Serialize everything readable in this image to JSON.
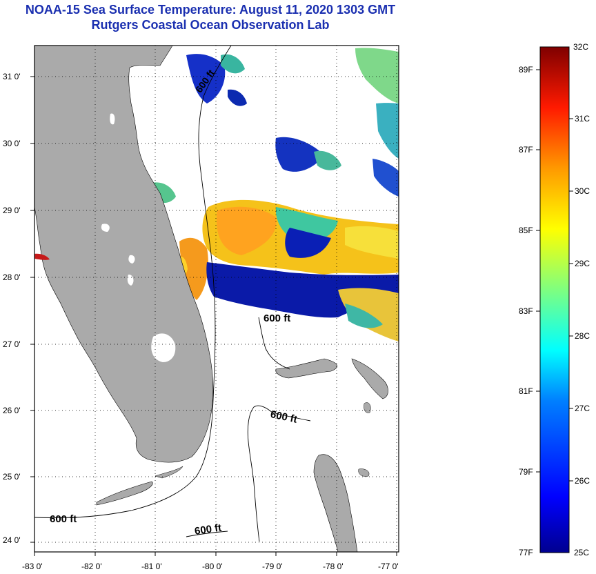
{
  "header": {
    "title": "NOAA-15 Sea Surface Temperature:  August 11, 2020 1303 GMT",
    "subtitle": "Rutgers Coastal Ocean Observation Lab"
  },
  "map": {
    "lat_ticks": [
      "31 0'",
      "30 0'",
      "29 0'",
      "28 0'",
      "27 0'",
      "26 0'",
      "25 0'",
      "24 0'"
    ],
    "lon_ticks": [
      "-83 0'",
      "-82 0'",
      "-81 0'",
      "-80 0'",
      "-79 0'",
      "-78 0'",
      "-77 0'"
    ],
    "contour_labels": [
      "600 ft",
      "600 ft",
      "600 ft",
      "600 ft",
      "600 ft"
    ],
    "land_color": "#aaaaaa",
    "grid": "dotted"
  },
  "colorbar": {
    "top_label": "32C",
    "bottom_left_label": "77F",
    "bottom_right_label": "25C",
    "left_labels": [
      "89F",
      "87F",
      "85F",
      "83F",
      "81F",
      "79F"
    ],
    "right_labels": [
      "31C",
      "30C",
      "29C",
      "28C",
      "27C",
      "26C"
    ],
    "colors": [
      "#00008f",
      "#0000ff",
      "#007fff",
      "#00ffff",
      "#7fff7f",
      "#ffff00",
      "#ff7f00",
      "#ff0000",
      "#7f0000"
    ]
  }
}
